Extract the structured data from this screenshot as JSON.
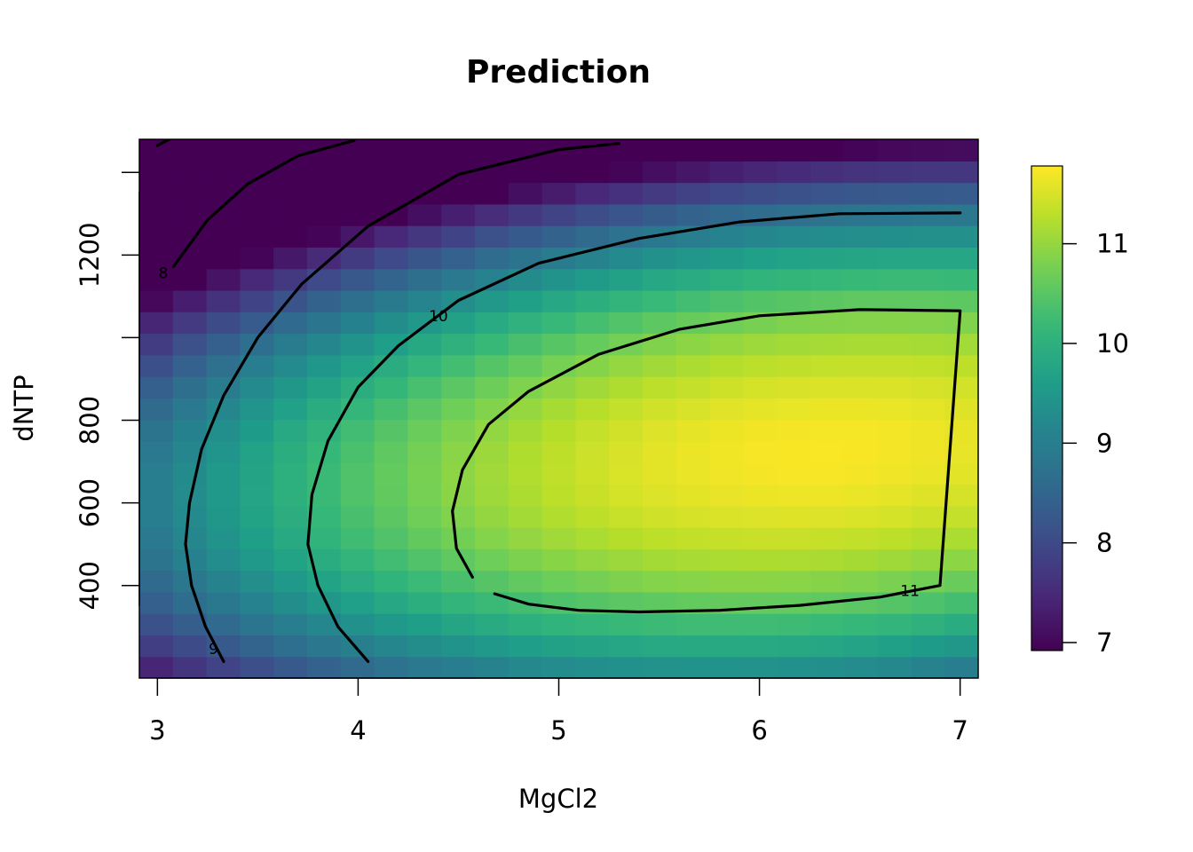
{
  "chart_data": {
    "type": "heatmap",
    "title": "Prediction",
    "xlabel": "MgCl2",
    "ylabel": "dNTP",
    "xlim": [
      2.91,
      7.09
    ],
    "ylim": [
      176,
      1480
    ],
    "x_ticks": [
      3,
      4,
      5,
      6,
      7
    ],
    "y_ticks": [
      400,
      600,
      800,
      1000,
      1200,
      1400
    ],
    "y_tick_labels": [
      "400",
      "600",
      "800",
      "",
      "1200",
      ""
    ],
    "grid": false,
    "colorscale": "viridis",
    "colorbar": {
      "range": [
        6.92,
        11.78
      ],
      "ticks": [
        7,
        8,
        9,
        10,
        11
      ],
      "position": "right"
    },
    "surface": {
      "peak_value": 11.75,
      "peak_x": 6.3,
      "peak_y": 720
    },
    "contours": [
      {
        "level": 8,
        "label": "8",
        "points": [
          [
            3.08,
            1172
          ],
          [
            3.25,
            1285
          ],
          [
            3.45,
            1372
          ],
          [
            3.7,
            1440
          ],
          [
            3.98,
            1477
          ]
        ],
        "label_at": [
          3.03,
          1155
        ]
      },
      {
        "level": 8,
        "label": "",
        "points": [
          [
            3.0,
            1465
          ],
          [
            3.07,
            1483
          ]
        ],
        "label_at": null
      },
      {
        "level": 9,
        "label": "9",
        "points": [
          [
            3.33,
            216
          ],
          [
            3.24,
            300
          ],
          [
            3.17,
            400
          ],
          [
            3.14,
            500
          ],
          [
            3.16,
            600
          ],
          [
            3.22,
            730
          ],
          [
            3.33,
            860
          ],
          [
            3.5,
            1000
          ],
          [
            3.72,
            1130
          ],
          [
            4.05,
            1270
          ],
          [
            4.5,
            1395
          ],
          [
            5.0,
            1455
          ],
          [
            5.3,
            1470
          ]
        ],
        "label_at": [
          3.28,
          245
        ]
      },
      {
        "level": 10,
        "label": "10",
        "points": [
          [
            4.05,
            216
          ],
          [
            3.9,
            300
          ],
          [
            3.8,
            400
          ],
          [
            3.75,
            500
          ],
          [
            3.77,
            620
          ],
          [
            3.85,
            750
          ],
          [
            4.0,
            880
          ],
          [
            4.2,
            980
          ],
          [
            4.5,
            1090
          ],
          [
            4.9,
            1180
          ],
          [
            5.4,
            1240
          ],
          [
            5.9,
            1280
          ],
          [
            6.4,
            1300
          ],
          [
            7.0,
            1302
          ]
        ],
        "label_at": [
          4.4,
          1050
        ]
      },
      {
        "level": 11,
        "label": "11",
        "points": [
          [
            4.57,
            420
          ],
          [
            4.49,
            490
          ],
          [
            4.47,
            580
          ],
          [
            4.52,
            680
          ],
          [
            4.65,
            790
          ],
          [
            4.85,
            870
          ],
          [
            5.2,
            960
          ],
          [
            5.6,
            1020
          ],
          [
            6.0,
            1053
          ],
          [
            6.5,
            1068
          ],
          [
            7.0,
            1065
          ],
          [
            6.9,
            400
          ],
          [
            6.6,
            372
          ],
          [
            6.2,
            352
          ],
          [
            5.8,
            340
          ],
          [
            5.4,
            336
          ],
          [
            5.1,
            340
          ],
          [
            4.85,
            355
          ],
          [
            4.68,
            380
          ]
        ],
        "label_at": [
          6.75,
          385
        ]
      }
    ]
  }
}
